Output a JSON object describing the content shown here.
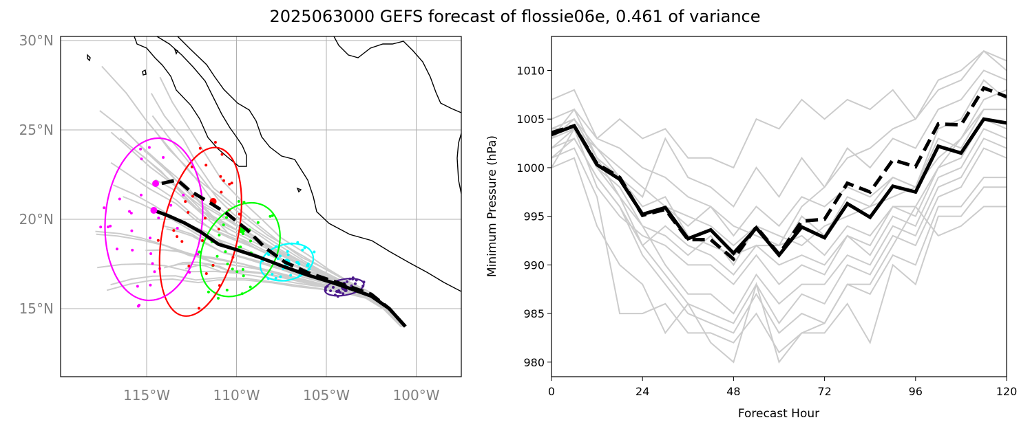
{
  "figure": {
    "title": "2025063000 GEFS forecast of flossie06e, 0.461 of variance"
  },
  "chart_data": [
    {
      "type": "map",
      "title": "",
      "xlabel": "",
      "ylabel": "",
      "lon_range": [
        -120,
        -97
      ],
      "lat_range": [
        11,
        30
      ],
      "lon_ticks": [
        -115,
        -110,
        -105,
        -100
      ],
      "lon_tick_labels": [
        "115°W",
        "110°W",
        "105°W",
        "100°W"
      ],
      "lat_ticks": [
        15,
        20,
        25,
        30
      ],
      "lat_tick_labels": [
        "15°N",
        "20°N",
        "25°N",
        "30°N"
      ],
      "grid": true,
      "colors": {
        "solid_track": "#000000",
        "dashed_track": "#000000",
        "members": "#cccccc",
        "coast": "#000000",
        "ellipses": [
          "#4b1a8a",
          "#00ffff",
          "#00ff00",
          "#ff0000",
          "#ff00ff"
        ]
      },
      "solid_track": {
        "lon": [
          -100.6,
          -101.5,
          -102.5,
          -103.6,
          -104.8,
          -106.1,
          -107.5,
          -108.8,
          -110.0,
          -111.0,
          -112.0,
          -112.9,
          -113.8,
          -114.6
        ],
        "lat": [
          14.0,
          15.0,
          15.7,
          16.1,
          16.5,
          16.9,
          17.4,
          17.9,
          18.3,
          18.6,
          19.3,
          19.8,
          20.2,
          20.5
        ]
      },
      "dashed_track": {
        "lon": [
          -100.6,
          -101.5,
          -102.5,
          -103.6,
          -104.8,
          -106.0,
          -107.3,
          -108.4,
          -109.4,
          -110.5,
          -111.6,
          -112.6,
          -113.3,
          -114.2
        ],
        "lat": [
          14.0,
          15.0,
          15.8,
          16.2,
          16.6,
          17.0,
          17.6,
          18.4,
          19.4,
          20.3,
          21.0,
          21.6,
          22.2,
          22.0
        ]
      },
      "ellipses": [
        {
          "lon": -104.0,
          "lat": 16.2,
          "width_deg": 2.2,
          "height_deg": 0.9,
          "angle": -10
        },
        {
          "lon": -107.2,
          "lat": 17.6,
          "width_deg": 3.0,
          "height_deg": 2.0,
          "angle": -15
        },
        {
          "lon": -109.8,
          "lat": 18.3,
          "width_deg": 4.0,
          "height_deg": 5.6,
          "angle": 30
        },
        {
          "lon": -112.0,
          "lat": 19.3,
          "width_deg": 4.2,
          "height_deg": 9.6,
          "angle": 12
        },
        {
          "lon": -114.6,
          "lat": 20.0,
          "width_deg": 5.4,
          "height_deg": 9.1,
          "angle": 5
        }
      ],
      "ellipse_centers": [
        {
          "lon": -104.0,
          "lat": 16.2
        },
        {
          "lon": -107.2,
          "lat": 17.6
        },
        {
          "lon": -109.7,
          "lat": 19.4
        },
        {
          "lon": -111.3,
          "lat": 21.0
        },
        {
          "lon": -114.5,
          "lat": 22.0
        }
      ]
    },
    {
      "type": "line",
      "title": "",
      "xlabel": "Forecast Hour",
      "ylabel": "Minimum Pressure (hPa)",
      "xlim": [
        0,
        120
      ],
      "ylim": [
        978.5,
        1013.5
      ],
      "xticks": [
        0,
        24,
        48,
        72,
        96,
        120
      ],
      "yticks": [
        980,
        985,
        990,
        995,
        1000,
        1005,
        1010
      ],
      "x": [
        0,
        6,
        12,
        18,
        24,
        30,
        36,
        42,
        48,
        54,
        60,
        66,
        72,
        78,
        84,
        90,
        96,
        102,
        108,
        114,
        120
      ],
      "series": [
        {
          "style": "solid-black",
          "values": [
            1003.4,
            1004.3,
            1000.3,
            998.8,
            995.2,
            995.9,
            992.7,
            993.6,
            991.2,
            993.8,
            991.0,
            993.9,
            992.8,
            996.3,
            994.9,
            998.1,
            997.5,
            1002.2,
            1001.5,
            1005.0,
            1004.6
          ]
        },
        {
          "style": "dashed-black",
          "values": [
            1003.6,
            1004.3,
            1000.4,
            999.0,
            995.1,
            995.7,
            992.6,
            992.6,
            990.6,
            993.9,
            991.1,
            994.5,
            994.7,
            998.4,
            997.5,
            1000.8,
            1000.1,
            1004.5,
            1004.4,
            1008.2,
            1007.3
          ]
        },
        {
          "style": "member",
          "values": [
            1007,
            1008,
            1003,
            1002,
            1000,
            999,
            997,
            996,
            994,
            993,
            992,
            996,
            998,
            1001,
            1002,
            1004,
            1005,
            1008,
            1009,
            1012,
            1011
          ]
        },
        {
          "style": "member",
          "values": [
            1005,
            1006,
            1003,
            1005,
            1003,
            1004,
            1001,
            1001,
            1000,
            1005,
            1004,
            1007,
            1005,
            1007,
            1006,
            1008,
            1005,
            1009,
            1010,
            1012,
            1010
          ]
        },
        {
          "style": "member",
          "values": [
            1004,
            1005,
            1001,
            999,
            997,
            1003,
            999,
            998,
            996,
            1000,
            997,
            1001,
            998,
            1002,
            1000,
            1003,
            1002,
            1006,
            1007,
            1010,
            1009
          ]
        },
        {
          "style": "member",
          "values": [
            1003,
            1005,
            1001,
            999,
            995,
            996,
            994,
            996,
            993,
            996,
            994,
            997,
            996,
            998,
            997,
            999,
            998,
            1004,
            1005,
            1009,
            1007
          ]
        },
        {
          "style": "member",
          "values": [
            1002,
            1004,
            1000,
            997,
            994,
            993,
            991,
            993,
            990,
            994,
            991,
            995,
            993,
            997,
            996,
            999,
            998,
            1003,
            1002,
            1006,
            1006
          ]
        },
        {
          "style": "member",
          "values": [
            1001,
            1003,
            999,
            996,
            992,
            994,
            992,
            991,
            989,
            992,
            990,
            991,
            990,
            993,
            992,
            996,
            995,
            1000,
            1001,
            1005,
            1004
          ]
        },
        {
          "style": "member",
          "values": [
            1000,
            1004,
            998,
            995,
            993,
            992,
            990,
            990,
            988,
            991,
            988,
            990,
            989,
            993,
            991,
            995,
            994,
            999,
            1000,
            1004,
            1003
          ]
        },
        {
          "style": "member",
          "values": [
            1004,
            1004,
            1000,
            998,
            994,
            990,
            987,
            987,
            985,
            989,
            986,
            988,
            988,
            991,
            990,
            994,
            993,
            998,
            999,
            1003,
            1002
          ]
        },
        {
          "style": "member",
          "values": [
            1003,
            1006,
            1001,
            997,
            992,
            989,
            986,
            985,
            984,
            988,
            984,
            987,
            986,
            990,
            989,
            993,
            992,
            997,
            998,
            1002,
            1001
          ]
        },
        {
          "style": "member",
          "values": [
            1002,
            1003,
            999,
            996,
            991,
            988,
            985,
            984,
            983,
            987,
            983,
            985,
            984,
            988,
            987,
            991,
            990,
            996,
            996,
            999,
            999
          ]
        },
        {
          "style": "member",
          "values": [
            1001,
            1002,
            997,
            985,
            985,
            986,
            983,
            983,
            982,
            985,
            981,
            983,
            983,
            986,
            982,
            990,
            988,
            995,
            995,
            998,
            998
          ]
        },
        {
          "style": "member",
          "values": [
            1000,
            1001,
            994,
            990,
            988,
            983,
            986,
            982,
            980,
            988,
            980,
            983,
            984,
            988,
            988,
            992,
            996,
            993,
            994,
            996,
            996
          ]
        },
        {
          "style": "member",
          "values": [
            1004,
            1005,
            1002,
            1000,
            998,
            996,
            995,
            994,
            992,
            994,
            993,
            992,
            994,
            995,
            996,
            997,
            998,
            1001,
            1003,
            1006,
            1006
          ]
        },
        {
          "style": "member",
          "values": [
            1003,
            1004,
            1002,
            999,
            996,
            997,
            993,
            992,
            991,
            992,
            992,
            993,
            991,
            994,
            993,
            996,
            996,
            1000,
            1003,
            1007,
            1008
          ]
        }
      ],
      "colors": {
        "main": "#000000",
        "members": "#cccccc"
      }
    }
  ]
}
